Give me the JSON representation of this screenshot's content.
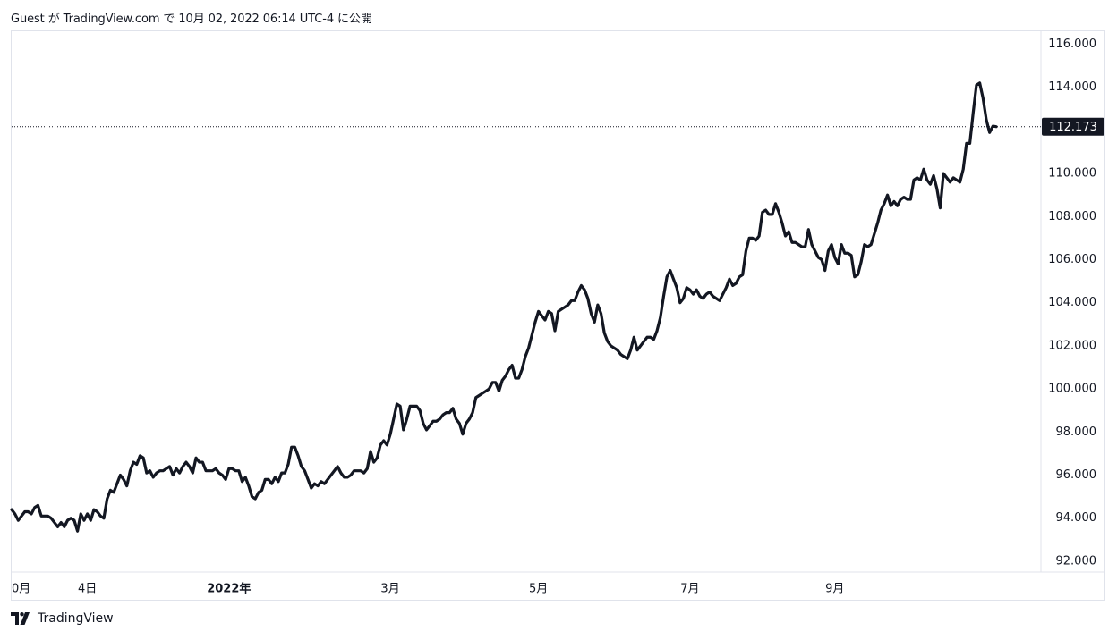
{
  "header": {
    "text": "Guest が TradingView.com で 10月 02, 2022 06:14 UTC-4 に公開"
  },
  "footer": {
    "brand": "TradingView",
    "logo_icon": "tradingview-logo-icon"
  },
  "chart_data": {
    "type": "line",
    "title": "",
    "xlabel": "",
    "ylabel": "",
    "ylim": [
      91.5,
      116.6
    ],
    "y_ticks": [
      "92.000",
      "94.000",
      "96.000",
      "98.000",
      "100.000",
      "102.000",
      "104.000",
      "106.000",
      "108.000",
      "110.000",
      "112.000",
      "114.000",
      "116.000"
    ],
    "x_ticks": [
      {
        "label": "0月",
        "i": 0,
        "bold": false
      },
      {
        "label": "4日",
        "i": 23,
        "bold": false
      },
      {
        "label": "2022年",
        "i": 66,
        "bold": true
      },
      {
        "label": "3月",
        "i": 115,
        "bold": false
      },
      {
        "label": "5月",
        "i": 160,
        "bold": false
      },
      {
        "label": "7月",
        "i": 206,
        "bold": false
      },
      {
        "label": "9月",
        "i": 250,
        "bold": false
      }
    ],
    "last_price": 112.173,
    "last_price_label": "112.173",
    "line_color": "#131722",
    "label_bg": "#131722",
    "grid": false,
    "series": [
      {
        "values": [
          94.4,
          94.2,
          93.9,
          94.1,
          94.3,
          94.3,
          94.2,
          94.5,
          94.6,
          94.1,
          94.1,
          94.1,
          94.0,
          93.8,
          93.6,
          93.8,
          93.6,
          93.9,
          94.0,
          93.9,
          93.4,
          94.2,
          93.9,
          94.2,
          93.9,
          94.4,
          94.3,
          94.1,
          94.0,
          94.9,
          95.3,
          95.2,
          95.6,
          96.0,
          95.8,
          95.5,
          96.2,
          96.6,
          96.5,
          96.9,
          96.8,
          96.1,
          96.2,
          95.9,
          96.1,
          96.2,
          96.2,
          96.3,
          96.4,
          96.0,
          96.3,
          96.1,
          96.4,
          96.6,
          96.4,
          96.1,
          96.8,
          96.6,
          96.6,
          96.2,
          96.2,
          96.2,
          96.3,
          96.1,
          96.0,
          95.8,
          96.3,
          96.3,
          96.2,
          96.2,
          95.7,
          95.9,
          95.5,
          95.0,
          94.9,
          95.2,
          95.3,
          95.8,
          95.8,
          95.6,
          95.9,
          95.7,
          96.1,
          96.1,
          96.5,
          97.3,
          97.3,
          96.9,
          96.4,
          96.2,
          95.8,
          95.4,
          95.6,
          95.5,
          95.7,
          95.6,
          95.8,
          96.0,
          96.2,
          96.4,
          96.1,
          95.9,
          95.9,
          96.0,
          96.2,
          96.2,
          96.2,
          96.1,
          96.3,
          97.1,
          96.6,
          96.8,
          97.4,
          97.6,
          97.4,
          97.9,
          98.6,
          99.3,
          99.2,
          98.1,
          98.6,
          99.2,
          99.2,
          99.2,
          99.0,
          98.4,
          98.1,
          98.3,
          98.5,
          98.5,
          98.6,
          98.8,
          98.9,
          98.9,
          99.1,
          98.6,
          98.4,
          97.9,
          98.4,
          98.6,
          98.9,
          99.6,
          99.7,
          99.8,
          99.9,
          100.0,
          100.3,
          100.3,
          99.9,
          100.4,
          100.6,
          100.9,
          101.1,
          100.5,
          100.5,
          100.9,
          101.5,
          101.9,
          102.5,
          103.1,
          103.6,
          103.4,
          103.2,
          103.6,
          103.5,
          102.7,
          103.6,
          103.7,
          103.8,
          103.9,
          104.1,
          104.1,
          104.5,
          104.8,
          104.6,
          104.2,
          103.5,
          103.1,
          103.9,
          103.5,
          102.6,
          102.2,
          102.0,
          101.9,
          101.8,
          101.6,
          101.5,
          101.4,
          101.8,
          102.4,
          101.8,
          102.0,
          102.2,
          102.4,
          102.4,
          102.3,
          102.7,
          103.3,
          104.3,
          105.2,
          105.5,
          105.1,
          104.7,
          104.0,
          104.2,
          104.7,
          104.6,
          104.4,
          104.6,
          104.3,
          104.2,
          104.4,
          104.5,
          104.3,
          104.2,
          104.1,
          104.4,
          104.7,
          105.1,
          104.8,
          104.9,
          105.2,
          105.3,
          106.4,
          107.0,
          107.0,
          106.9,
          107.1,
          108.2,
          108.3,
          108.1,
          108.1,
          108.6,
          108.2,
          107.7,
          107.1,
          107.3,
          106.8,
          106.8,
          106.7,
          106.6,
          106.6,
          107.4,
          106.7,
          106.4,
          106.1,
          106.0,
          105.5,
          106.4,
          106.7,
          106.1,
          105.8,
          106.7,
          106.3,
          106.3,
          106.2,
          105.2,
          105.3,
          105.9,
          106.7,
          106.6,
          106.7,
          107.2,
          107.7,
          108.3,
          108.6,
          109.0,
          108.5,
          108.7,
          108.5,
          108.8,
          108.9,
          108.8,
          108.8,
          109.7,
          109.8,
          109.7,
          110.2,
          109.7,
          109.5,
          109.9,
          109.3,
          108.4,
          110.0,
          109.8,
          109.6,
          109.8,
          109.7,
          109.6,
          110.2,
          111.4,
          111.4,
          112.8,
          114.1,
          114.2,
          113.5,
          112.5,
          111.9,
          112.2,
          112.173
        ]
      }
    ]
  }
}
